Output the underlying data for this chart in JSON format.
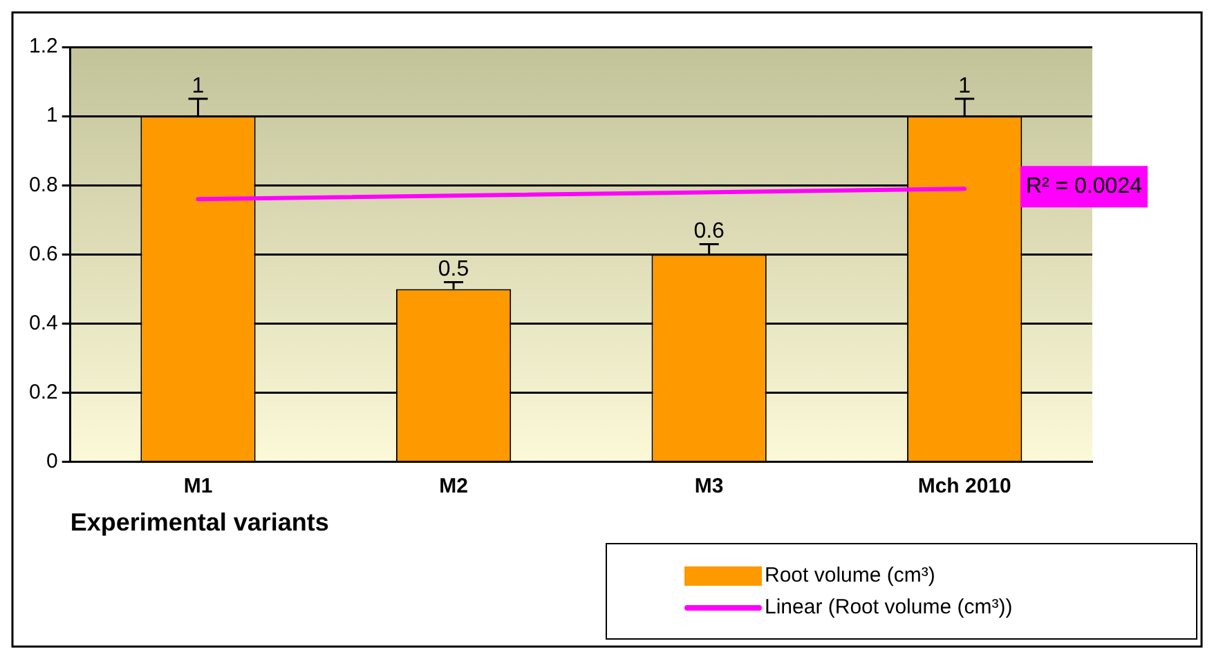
{
  "chart_data": {
    "type": "bar",
    "xlabel": "Experimental variants",
    "categories": [
      "M1",
      "M2",
      "M3",
      "Mch 2010"
    ],
    "series": [
      {
        "name": "Root volume (cm³)",
        "color": "#ff9900",
        "values": [
          1,
          0.5,
          0.6,
          1
        ],
        "value_labels": [
          "1",
          "0.5",
          "0.6",
          "1"
        ],
        "errors": [
          0.05,
          0.02,
          0.03,
          0.05
        ]
      },
      {
        "name": "Linear (Root volume (cm³))",
        "type": "line",
        "color": "#ff00ff",
        "x": [
          "M1",
          "Mch 2010"
        ],
        "values": [
          0.76,
          0.79
        ]
      }
    ],
    "ylim": [
      0,
      1.2
    ],
    "yticks": [
      0,
      0.2,
      0.4,
      0.6,
      0.8,
      1,
      1.2
    ],
    "grid": "y",
    "legend": "bottom right",
    "marker": "none",
    "annotations": [
      "R² = 0.0024"
    ]
  }
}
